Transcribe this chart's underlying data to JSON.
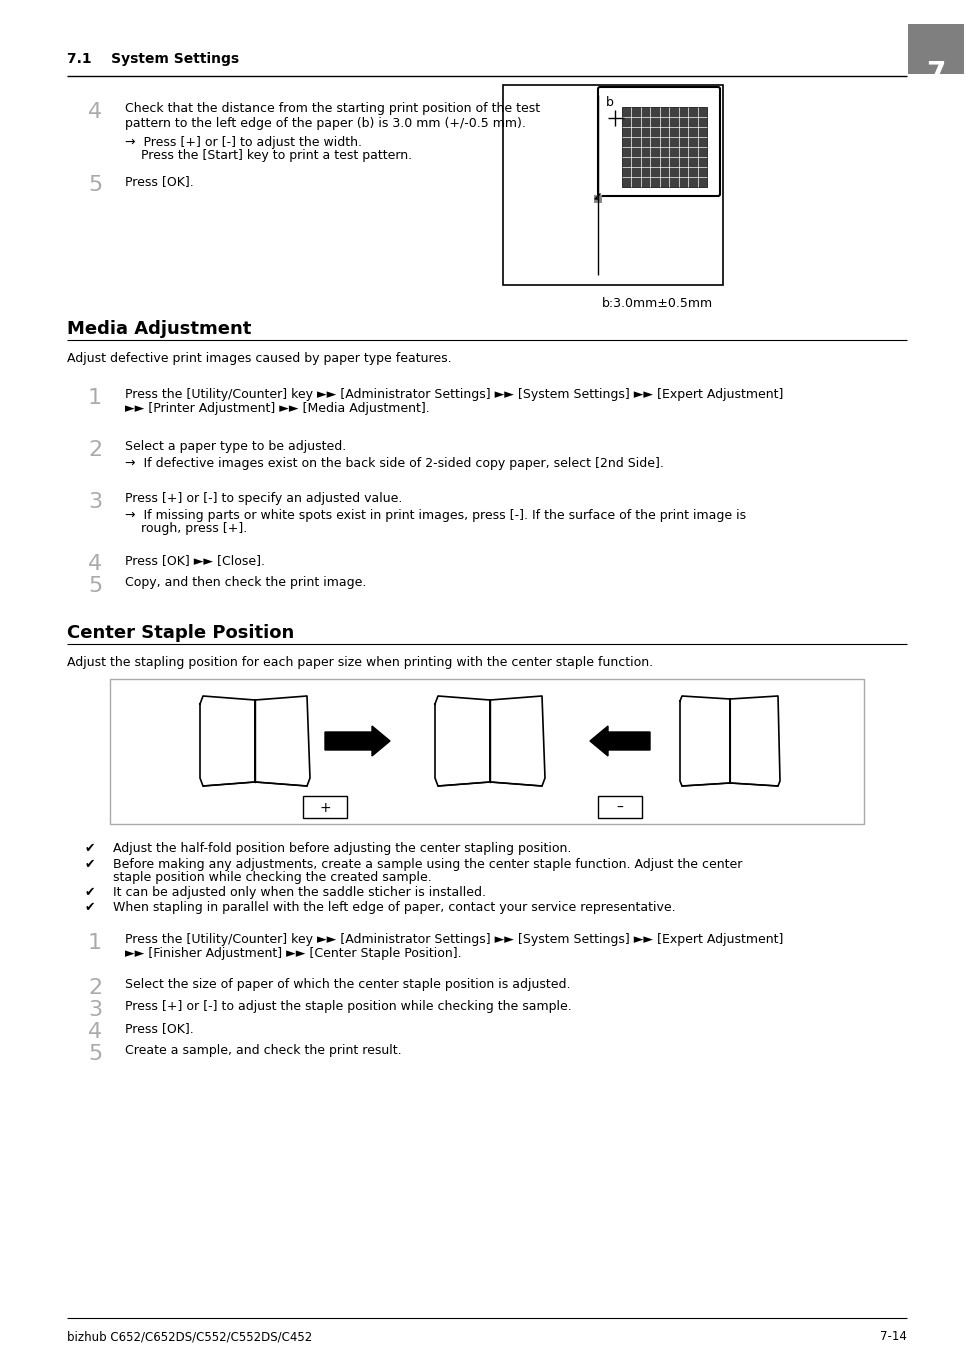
{
  "page_header_left": "7.1    System Settings",
  "page_number": "7",
  "footer_left": "bizhub C652/C652DS/C552/C552DS/C452",
  "footer_right": "7-14",
  "bg_color": "#ffffff",
  "section1_title": "Media Adjustment",
  "section2_title": "Center Staple Position",
  "step4_number": "4",
  "step4_line1": "Check that the distance from the starting print position of the test",
  "step4_line2": "pattern to the left edge of the paper (b) is 3.0 mm (+/-0.5 mm).",
  "step4_arrow_line1": "→  Press [+] or [-] to adjust the width.",
  "step4_arrow_line2": "    Press the [Start] key to print a test pattern.",
  "step5_number": "5",
  "step5_text": "Press [OK].",
  "diagram_label": "b:3.0mm±0.5mm",
  "media_adj_intro": "Adjust defective print images caused by paper type features.",
  "media_step1_num": "1",
  "media_step1_text": "Press the [Utility/Counter] key ►► [Administrator Settings] ►► [System Settings] ►► [Expert Adjustment]",
  "media_step1_text2": "►► [Printer Adjustment] ►► [Media Adjustment].",
  "media_step2_num": "2",
  "media_step2_text": "Select a paper type to be adjusted.",
  "media_step2_arrow": "→  If defective images exist on the back side of 2-sided copy paper, select [2nd Side].",
  "media_step3_num": "3",
  "media_step3_text": "Press [+] or [-] to specify an adjusted value.",
  "media_step3_arrow1": "→  If missing parts or white spots exist in print images, press [-]. If the surface of the print image is",
  "media_step3_arrow2": "    rough, press [+].",
  "media_step4_num": "4",
  "media_step4_text": "Press [OK] ►► [Close].",
  "media_step5_num": "5",
  "media_step5_text": "Copy, and then check the print image.",
  "center_staple_intro": "Adjust the stapling position for each paper size when printing with the center staple function.",
  "bullet1": "Adjust the half-fold position before adjusting the center stapling position.",
  "bullet2a": "Before making any adjustments, create a sample using the center staple function. Adjust the center",
  "bullet2b": "staple position while checking the created sample.",
  "bullet3": "It can be adjusted only when the saddle sticher is installed.",
  "bullet4": "When stapling in parallel with the left edge of paper, contact your service representative.",
  "cs_step1_num": "1",
  "cs_step1_text": "Press the [Utility/Counter] key ►► [Administrator Settings] ►► [System Settings] ►► [Expert Adjustment]",
  "cs_step1_text2": "►► [Finisher Adjustment] ►► [Center Staple Position].",
  "cs_step2_num": "2",
  "cs_step2_text": "Select the size of paper of which the center staple position is adjusted.",
  "cs_step3_num": "3",
  "cs_step3_text": "Press [+] or [-] to adjust the staple position while checking the sample.",
  "cs_step4_num": "4",
  "cs_step4_text": "Press [OK].",
  "cs_step5_num": "5",
  "cs_step5_text": "Create a sample, and check the print result."
}
